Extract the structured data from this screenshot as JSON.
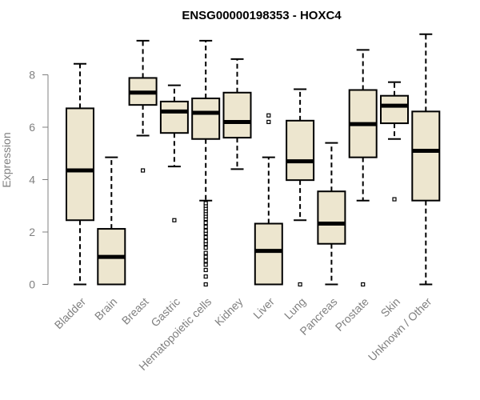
{
  "chart_data": {
    "type": "boxplot",
    "title": "ENSG00000198353 - HOXC4",
    "xlabel": "",
    "ylabel": "Expression",
    "ylim": [
      0,
      9.6
    ],
    "yticks": [
      0,
      2,
      4,
      6,
      8
    ],
    "categories": [
      "Bladder",
      "Brain",
      "Breast",
      "Gastric",
      "Hematopoietic cells",
      "Kidney",
      "Liver",
      "Lung",
      "Pancreas",
      "Prostate",
      "Skin",
      "Unknown / Other"
    ],
    "boxes": [
      {
        "name": "Bladder",
        "whisker_low": 0.0,
        "q1": 2.45,
        "median": 4.35,
        "q3": 6.72,
        "whisker_high": 8.42,
        "outliers": []
      },
      {
        "name": "Brain",
        "whisker_low": 0.0,
        "q1": 0.0,
        "median": 1.05,
        "q3": 2.12,
        "whisker_high": 4.85,
        "outliers": []
      },
      {
        "name": "Breast",
        "whisker_low": 5.68,
        "q1": 6.85,
        "median": 7.32,
        "q3": 7.88,
        "whisker_high": 9.3,
        "outliers": [
          4.35
        ]
      },
      {
        "name": "Gastric",
        "whisker_low": 4.5,
        "q1": 5.78,
        "median": 6.6,
        "q3": 6.98,
        "whisker_high": 7.6,
        "outliers": [
          2.45
        ]
      },
      {
        "name": "Hematopoietic cells",
        "whisker_low": 3.2,
        "q1": 5.55,
        "median": 6.55,
        "q3": 7.1,
        "whisker_high": 9.3,
        "outliers": [
          0.0,
          0.3,
          0.55,
          0.75,
          0.9,
          1.05,
          1.2,
          1.4,
          1.55,
          1.65,
          1.8,
          1.95,
          2.05,
          2.2,
          2.35,
          2.5,
          2.6,
          2.7,
          2.8,
          2.9,
          3.0,
          3.1
        ]
      },
      {
        "name": "Kidney",
        "whisker_low": 4.4,
        "q1": 5.6,
        "median": 6.2,
        "q3": 7.32,
        "whisker_high": 8.6,
        "outliers": []
      },
      {
        "name": "Liver",
        "whisker_low": 0.0,
        "q1": 0.0,
        "median": 1.28,
        "q3": 2.32,
        "whisker_high": 4.85,
        "outliers": [
          6.2,
          6.45
        ]
      },
      {
        "name": "Lung",
        "whisker_low": 2.45,
        "q1": 3.98,
        "median": 4.7,
        "q3": 6.25,
        "whisker_high": 7.45,
        "outliers": [
          0.0
        ]
      },
      {
        "name": "Pancreas",
        "whisker_low": 0.0,
        "q1": 1.55,
        "median": 2.32,
        "q3": 3.55,
        "whisker_high": 5.4,
        "outliers": []
      },
      {
        "name": "Prostate",
        "whisker_low": 3.2,
        "q1": 4.85,
        "median": 6.12,
        "q3": 7.42,
        "whisker_high": 8.95,
        "outliers": [
          0.0
        ]
      },
      {
        "name": "Skin",
        "whisker_low": 5.55,
        "q1": 6.15,
        "median": 6.82,
        "q3": 7.2,
        "whisker_high": 7.72,
        "outliers": [
          3.25
        ]
      },
      {
        "name": "Unknown / Other",
        "whisker_low": 0.0,
        "q1": 3.2,
        "median": 5.1,
        "q3": 6.6,
        "whisker_high": 9.55,
        "outliers": []
      }
    ],
    "colors": {
      "box_fill": "#ede6cf",
      "box_stroke": "#000000",
      "axis": "#808080",
      "text_muted": "#808080",
      "title": "#000000"
    }
  }
}
